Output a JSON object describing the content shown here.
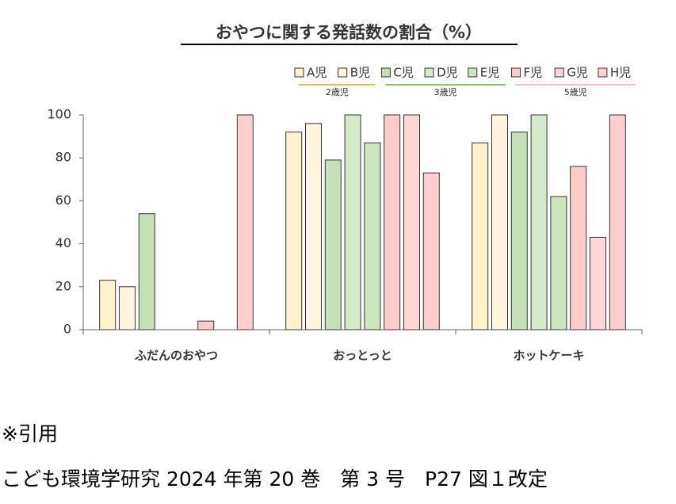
{
  "chart_data": {
    "type": "bar",
    "title": "おやつに関する発話数の割合（%）",
    "categories": [
      "ふだんのおやつ",
      "おっとっと",
      "ホットケーキ"
    ],
    "series": [
      {
        "name": "A児",
        "color": "#fff2cc",
        "group": "2歳児",
        "group_color": "#d4b106",
        "values": [
          23,
          92,
          87
        ]
      },
      {
        "name": "B児",
        "color": "#fff6dd",
        "group": "2歳児",
        "group_color": "#d4b106",
        "values": [
          20,
          96,
          100
        ]
      },
      {
        "name": "C児",
        "color": "#c5e0b4",
        "group": "3歳児",
        "group_color": "#70ad47",
        "values": [
          54,
          79,
          92
        ]
      },
      {
        "name": "D児",
        "color": "#d5eacb",
        "group": "3歳児",
        "group_color": "#70ad47",
        "values": [
          0,
          100,
          100
        ]
      },
      {
        "name": "E児",
        "color": "#cde6c0",
        "group": "3歳児",
        "group_color": "#70ad47",
        "values": [
          0,
          87,
          62
        ]
      },
      {
        "name": "F児",
        "color": "#ffcccc",
        "group": "5歳児",
        "group_color": "#f4a6c8",
        "values": [
          4,
          100,
          76
        ]
      },
      {
        "name": "G児",
        "color": "#ffd6d6",
        "group": "5歳児",
        "group_color": "#f4a6c8",
        "values": [
          0,
          100,
          43
        ]
      },
      {
        "name": "H児",
        "color": "#ffcfcf",
        "group": "5歳児",
        "group_color": "#f4a6c8",
        "values": [
          100,
          73,
          100
        ]
      }
    ],
    "ylim": [
      0,
      100
    ],
    "yticks": [
      0,
      20,
      40,
      60,
      80,
      100
    ],
    "grid": false
  },
  "notes": [
    "※引用",
    "こども環境学研究 2024 年第 20 巻　第 3 号　P27 図１改定"
  ]
}
